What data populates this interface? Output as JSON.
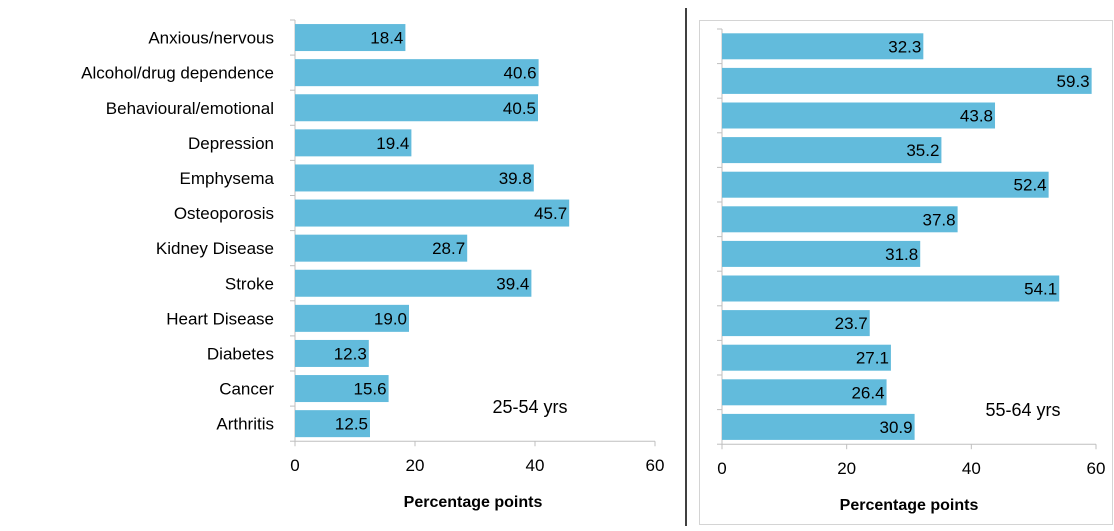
{
  "bar_color": "#62bbdc",
  "chart_data": [
    {
      "type": "bar",
      "orientation": "horizontal",
      "categories": [
        "Anxious/nervous",
        "Alcohol/drug dependence",
        "Behavioural/emotional",
        "Depression",
        "Emphysema",
        "Osteoporosis",
        "Kidney Disease",
        "Stroke",
        "Heart Disease",
        "Diabetes",
        "Cancer",
        "Arthritis"
      ],
      "values": [
        18.4,
        40.6,
        40.5,
        19.4,
        39.8,
        45.7,
        28.7,
        39.4,
        19.0,
        12.3,
        15.6,
        12.5
      ],
      "value_labels": [
        "18.4",
        "40.6",
        "40.5",
        "19.4",
        "39.8",
        "45.7",
        "28.7",
        "39.4",
        "19.0",
        "12.3",
        "15.6",
        "12.5"
      ],
      "annotation": "25-54 yrs",
      "xlabel": "Percentage  points",
      "xlim": [
        0,
        60
      ],
      "xticks": [
        "0",
        "20",
        "40",
        "60"
      ],
      "grid": false
    },
    {
      "type": "bar",
      "orientation": "horizontal",
      "values": [
        32.3,
        59.3,
        43.8,
        35.2,
        52.4,
        37.8,
        31.8,
        54.1,
        23.7,
        27.1,
        26.4,
        30.9
      ],
      "value_labels": [
        "32.3",
        "59.3",
        "43.8",
        "35.2",
        "52.4",
        "37.8",
        "31.8",
        "54.1",
        "23.7",
        "27.1",
        "26.4",
        "30.9"
      ],
      "annotation": "55-64 yrs",
      "xlabel": "Percentage  points",
      "xlim": [
        0,
        60
      ],
      "xticks": [
        "0",
        "20",
        "40",
        "60"
      ],
      "grid": false
    }
  ]
}
